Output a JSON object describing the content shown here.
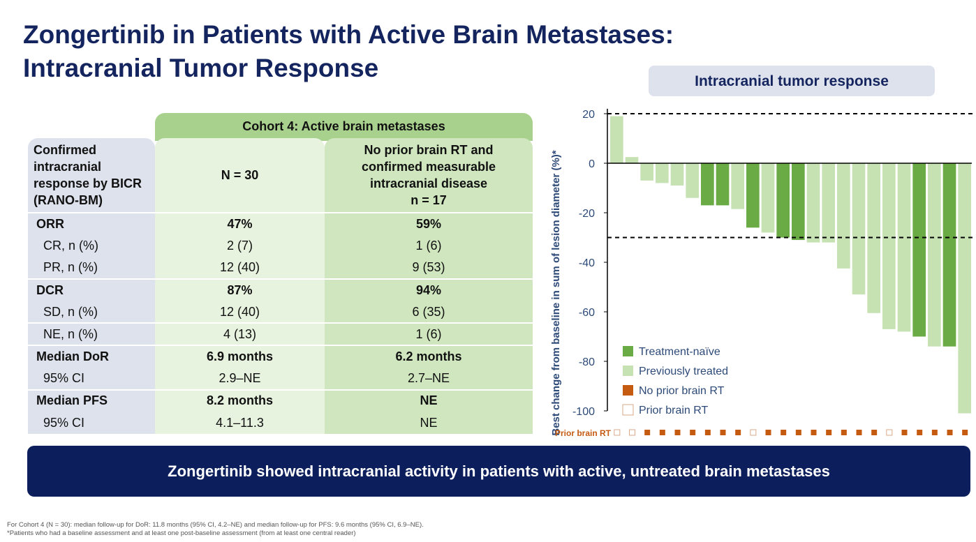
{
  "title": {
    "line1": "Zongertinib in Patients with Active Brain Metastases:",
    "line2": "Intracranial Tumor Response"
  },
  "table": {
    "cohort_header": "Cohort 4: Active brain metastases",
    "header": {
      "label": "Confirmed intracranial response by BICR (RANO-BM)",
      "col1": "N = 30",
      "col2_lines": [
        "No prior brain RT and",
        "confirmed measurable",
        "intracranial disease",
        "n = 17"
      ]
    },
    "rows": [
      {
        "label": "ORR",
        "v1": "47%",
        "v2": "59%"
      },
      {
        "label": "CR, n (%)",
        "v1": "2 (7)",
        "v2": "1 (6)"
      },
      {
        "label": "PR, n (%)",
        "v1": "12 (40)",
        "v2": "9 (53)"
      },
      {
        "label": "DCR",
        "v1": "87%",
        "v2": "94%"
      },
      {
        "label": "SD, n (%)",
        "v1": "12 (40)",
        "v2": "6 (35)"
      },
      {
        "label": "NE, n (%)",
        "v1": "4 (13)",
        "v2": "1 (6)"
      },
      {
        "label": "Median DoR",
        "v1": "6.9 months",
        "v2": "6.2 months"
      },
      {
        "label": "95% CI",
        "v1": "2.9–NE",
        "v2": "2.7–NE"
      },
      {
        "label": "Median PFS",
        "v1": "8.2 months",
        "v2": "NE"
      },
      {
        "label": "95% CI",
        "v1": "4.1–11.3",
        "v2": "NE"
      }
    ]
  },
  "chart_data": {
    "type": "bar",
    "title": "Intracranial tumor response",
    "ylabel": "Best change from baseline in sum of lesion diameter (%)*",
    "ylim": [
      -100,
      20
    ],
    "yticks": [
      20,
      0,
      -20,
      -40,
      -60,
      -80,
      -100
    ],
    "reference_lines": [
      20,
      -30
    ],
    "values": [
      19,
      2.5,
      -7,
      -8,
      -9,
      -14,
      -17,
      -17,
      -18.5,
      -26,
      -28,
      -30,
      -31,
      -32,
      -32,
      -42.5,
      -53,
      -60.5,
      -67,
      -68,
      -70,
      -74,
      -74,
      -101
    ],
    "group": [
      "P",
      "P",
      "P",
      "P",
      "P",
      "P",
      "N",
      "N",
      "P",
      "N",
      "P",
      "N",
      "N",
      "P",
      "P",
      "P",
      "P",
      "P",
      "P",
      "P",
      "N",
      "P",
      "N",
      "P"
    ],
    "prior_brain_rt": [
      true,
      true,
      false,
      false,
      false,
      false,
      false,
      false,
      false,
      true,
      false,
      false,
      false,
      false,
      false,
      false,
      false,
      false,
      true,
      false,
      false,
      false,
      false,
      false
    ],
    "prior_rt_row_label": "Prior brain RT",
    "legend": [
      {
        "label": "Treatment-naïve",
        "color": "#6aab45"
      },
      {
        "label": "Previously treated",
        "color": "#c6e2b3"
      },
      {
        "label": "No prior brain RT",
        "color": "#c55a11"
      },
      {
        "label": "Prior brain RT",
        "color": "#ffffff"
      }
    ]
  },
  "banner": "Zongertinib showed intracranial activity in patients with active, untreated brain metastases",
  "footnotes": [
    "For Cohort 4 (N = 30): median follow-up for DoR: 11.8 months (95% CI, 4.2–NE) and median follow-up for PFS: 9.6 months (95% CI, 6.9–NE).",
    "*Patients who had a baseline assessment and at least one post-baseline assessment (from at least one central reader)"
  ]
}
